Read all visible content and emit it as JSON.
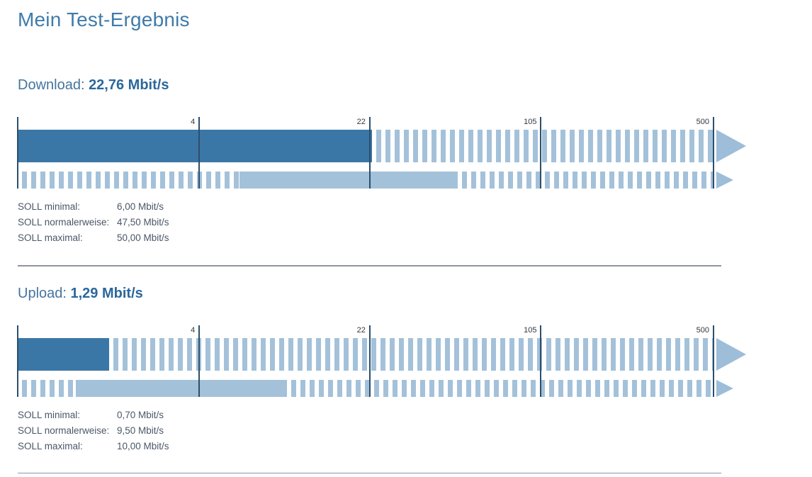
{
  "page": {
    "title": "Mein Test-Ergebnis"
  },
  "sections": [
    {
      "id": "download",
      "heading_label": "Download: ",
      "heading_value": "22,76 Mbit/s",
      "soll_rows": [
        {
          "label": "SOLL minimal:",
          "value": "6,00 Mbit/s"
        },
        {
          "label": "SOLL normalerweise:",
          "value": "47,50 Mbit/s"
        },
        {
          "label": "SOLL maximal:",
          "value": "50,00 Mbit/s"
        }
      ]
    },
    {
      "id": "upload",
      "heading_label": "Upload: ",
      "heading_value": "1,29 Mbit/s",
      "soll_rows": [
        {
          "label": "SOLL minimal:",
          "value": "0,70 Mbit/s"
        },
        {
          "label": "SOLL normalerweise:",
          "value": "9,50 Mbit/s"
        },
        {
          "label": "SOLL maximal:",
          "value": "10,00 Mbit/s"
        }
      ]
    }
  ],
  "chart_data": [
    {
      "type": "bar",
      "title": "Download",
      "unit": "Mbit/s",
      "measured_mbits": 22.76,
      "soll_minimal_mbits": 6.0,
      "soll_normalerweise_mbits": 47.5,
      "soll_maximal_mbits": 50.0,
      "scale_type": "logarithmic",
      "scale_tick_labels": [
        "4",
        "22",
        "105",
        "500"
      ],
      "legend_note": "top bar = measured value (solid dark), bottom bar = SOLL range (solid light between minimal and maximal), stripes = rest of scale up to 500",
      "layout": {
        "tick_pcts": [
          0,
          26.1,
          50.6,
          75.2,
          100
        ],
        "measured_to_pct": 50.9,
        "soll_striped_from_pct": 0,
        "soll_solid_from_pct": 31.9,
        "soll_solid_to_pct": 63.2
      }
    },
    {
      "type": "bar",
      "title": "Upload",
      "unit": "Mbit/s",
      "measured_mbits": 1.29,
      "soll_minimal_mbits": 0.7,
      "soll_normalerweise_mbits": 9.5,
      "soll_maximal_mbits": 10.0,
      "scale_type": "logarithmic",
      "scale_tick_labels": [
        "4",
        "22",
        "105",
        "500"
      ],
      "legend_note": "top bar = measured value (solid dark), bottom bar = SOLL range (solid light between minimal and maximal), stripes = rest of scale up to 500",
      "layout": {
        "tick_pcts": [
          0,
          26.1,
          50.6,
          75.2,
          100
        ],
        "measured_to_pct": 13.1,
        "soll_striped_from_pct": 0,
        "soll_solid_from_pct": 8.3,
        "soll_solid_to_pct": 38.7
      }
    }
  ],
  "colors": {
    "measured_bar": "#3b77a6",
    "soll_bar": "#a4c1da",
    "stripe": "#a4c1da",
    "arrow": "#9dbdd9",
    "tick_line": "#2b4f6d",
    "heading_blue": "#3f7bab",
    "text_slate": "#4a5767",
    "divider_gray": "#8e949e"
  }
}
